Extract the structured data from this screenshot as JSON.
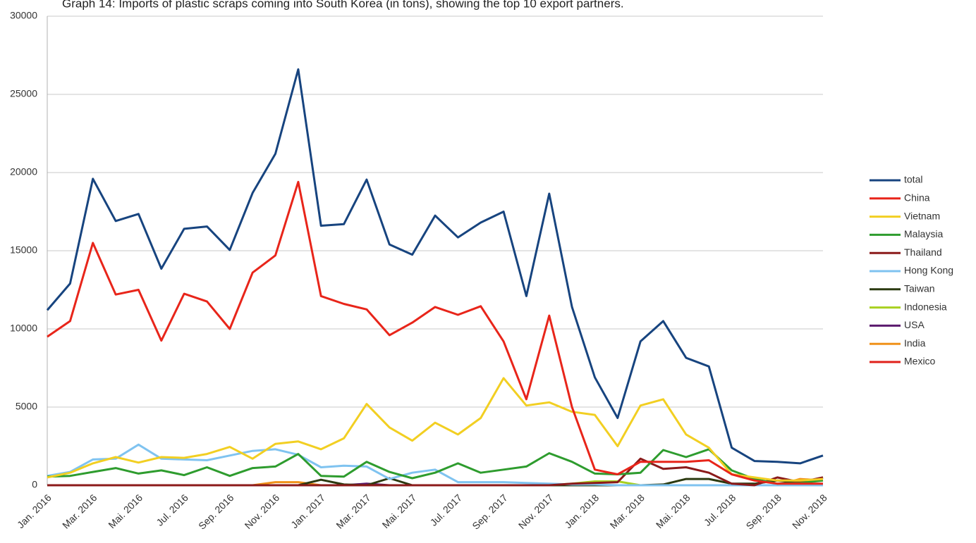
{
  "chart_data": {
    "type": "line",
    "title": "Graph 14: Imports of plastic scraps coming into South Korea (in tons), showing the top 10 export partners.",
    "categories": [
      "Jan. 2016",
      null,
      "Mar. 2016",
      null,
      "Mai. 2016",
      null,
      "Jul. 2016",
      null,
      "Sep. 2016",
      null,
      "Nov. 2016",
      null,
      "Jan. 2017",
      null,
      "Mar. 2017",
      null,
      "Mai. 2017",
      null,
      "Jul. 2017",
      null,
      "Sep. 2017",
      null,
      "Nov. 2017",
      null,
      "Jan. 2018",
      null,
      "Mar. 2018",
      null,
      "Mai. 2018",
      null,
      "Jul. 2018",
      null,
      "Sep. 2018",
      null,
      "Nov. 2018"
    ],
    "ylim": [
      0,
      30000
    ],
    "yticks": [
      0,
      5000,
      10000,
      15000,
      20000,
      25000,
      30000
    ],
    "grid": true,
    "legend": "right",
    "series": [
      {
        "name": "total",
        "color": "#17447f",
        "values": [
          11200,
          12900,
          19600,
          16900,
          17350,
          13850,
          16400,
          16550,
          15050,
          18700,
          21200,
          26600,
          16600,
          16700,
          19550,
          15400,
          14750,
          17250,
          15850,
          16800,
          17500,
          12100,
          18650,
          11400,
          6900,
          4300,
          9200,
          10500,
          8150,
          7600,
          2400,
          1550,
          1500,
          1400,
          1900
        ]
      },
      {
        "name": "China",
        "color": "#e8251a",
        "values": [
          9500,
          10500,
          15500,
          12200,
          12500,
          9250,
          12250,
          11750,
          10000,
          13600,
          14700,
          19400,
          12100,
          11600,
          11250,
          9600,
          10400,
          11400,
          10900,
          11450,
          9200,
          5500,
          10850,
          5000,
          1000,
          700,
          1500,
          1500,
          1500,
          1600,
          700,
          300,
          100,
          100,
          100
        ]
      },
      {
        "name": "Vietnam",
        "color": "#f2cf22",
        "values": [
          500,
          800,
          1400,
          1800,
          1450,
          1800,
          1750,
          2000,
          2450,
          1700,
          2650,
          2800,
          2300,
          3000,
          5200,
          3700,
          2850,
          4000,
          3250,
          4300,
          6850,
          5100,
          5300,
          4700,
          4500,
          2500,
          5100,
          5500,
          3250,
          2400,
          700,
          500,
          300,
          300,
          400
        ]
      },
      {
        "name": "Malaysia",
        "color": "#2e9c2e",
        "values": [
          550,
          600,
          850,
          1100,
          750,
          950,
          650,
          1150,
          600,
          1100,
          1200,
          2000,
          600,
          550,
          1500,
          850,
          450,
          800,
          1400,
          800,
          1000,
          1200,
          2050,
          1500,
          750,
          700,
          800,
          2250,
          1800,
          2300,
          950,
          400,
          100,
          150,
          300
        ]
      },
      {
        "name": "Thailand",
        "color": "#8b1a1a",
        "values": [
          0,
          0,
          0,
          0,
          0,
          0,
          0,
          0,
          0,
          0,
          0,
          0,
          0,
          0,
          0,
          0,
          0,
          0,
          0,
          0,
          0,
          0,
          0,
          100,
          150,
          200,
          1700,
          1050,
          1150,
          800,
          100,
          0,
          500,
          200,
          500
        ]
      },
      {
        "name": "Hong Kong",
        "color": "#7fc3f0",
        "values": [
          600,
          850,
          1650,
          1700,
          2600,
          1700,
          1650,
          1600,
          1900,
          2200,
          2300,
          1950,
          1150,
          1250,
          1200,
          400,
          800,
          1000,
          200,
          200,
          200,
          150,
          100,
          50,
          50,
          0,
          0,
          0,
          0,
          0,
          0,
          0,
          0,
          0,
          0
        ]
      },
      {
        "name": "Taiwan",
        "color": "#2b3a10",
        "values": [
          0,
          0,
          0,
          0,
          0,
          0,
          0,
          0,
          0,
          0,
          0,
          0,
          350,
          50,
          0,
          450,
          0,
          0,
          0,
          0,
          0,
          0,
          0,
          0,
          0,
          0,
          0,
          50,
          400,
          400,
          100,
          100,
          300,
          150,
          500
        ]
      },
      {
        "name": "Indonesia",
        "color": "#a8d020",
        "values": [
          0,
          0,
          0,
          0,
          0,
          0,
          0,
          0,
          0,
          0,
          0,
          0,
          0,
          0,
          0,
          0,
          0,
          0,
          0,
          0,
          0,
          0,
          0,
          100,
          250,
          250,
          0,
          0,
          0,
          0,
          0,
          0,
          0,
          0,
          0
        ]
      },
      {
        "name": "USA",
        "color": "#5b1a6e",
        "values": [
          0,
          0,
          0,
          0,
          0,
          0,
          0,
          0,
          0,
          0,
          0,
          0,
          0,
          0,
          100,
          0,
          0,
          0,
          0,
          0,
          0,
          0,
          0,
          0,
          0,
          0,
          0,
          0,
          0,
          0,
          0,
          0,
          0,
          0,
          0
        ]
      },
      {
        "name": "India",
        "color": "#f0921a",
        "values": [
          0,
          0,
          0,
          0,
          0,
          0,
          0,
          0,
          0,
          0,
          200,
          200,
          0,
          0,
          0,
          0,
          0,
          0,
          0,
          0,
          0,
          0,
          0,
          0,
          0,
          0,
          0,
          0,
          0,
          0,
          0,
          0,
          0,
          400,
          300
        ]
      },
      {
        "name": "Mexico",
        "color": "#e0201a",
        "values": [
          0,
          0,
          0,
          0,
          0,
          0,
          0,
          0,
          0,
          0,
          0,
          0,
          0,
          0,
          0,
          0,
          0,
          0,
          0,
          0,
          0,
          0,
          0,
          0,
          0,
          0,
          0,
          0,
          0,
          0,
          0,
          0,
          0,
          0,
          0
        ]
      }
    ]
  }
}
